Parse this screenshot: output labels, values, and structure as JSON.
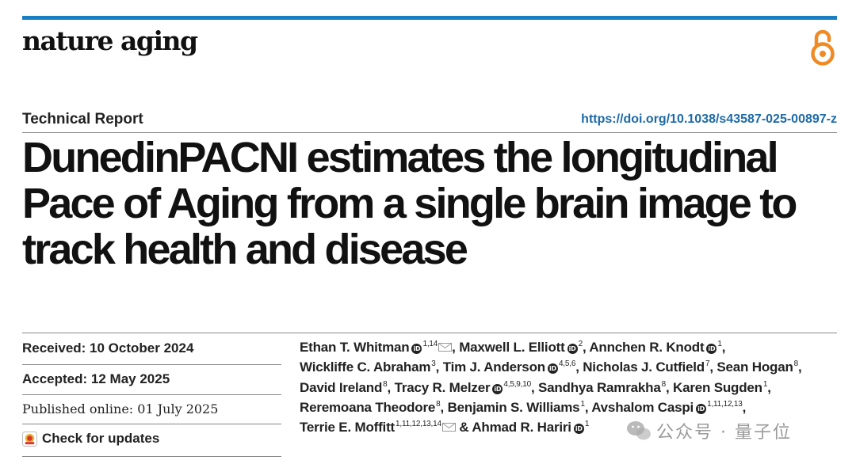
{
  "journal": {
    "name": "nature aging",
    "open_access_icon": "open-access-lock-icon"
  },
  "article": {
    "type": "Technical Report",
    "doi": "https://doi.org/10.1038/s43587-025-00897-z",
    "title_lines": [
      "DunedinPACNI estimates the longitudinal",
      "Pace of Aging from a single brain image to",
      "track health and disease"
    ]
  },
  "dates": {
    "received": "Received: 10 October 2024",
    "accepted": "Accepted: 12 May 2025",
    "published": "Published online: 01 July 2025"
  },
  "check_updates": {
    "label": "Check for updates"
  },
  "orcid_glyph": "iD",
  "authors": [
    {
      "name": "Ethan T. Whitman",
      "sup": "1,14",
      "orcid": true,
      "email": true
    },
    {
      "name": "Maxwell L. Elliott",
      "sup": "2",
      "orcid": true
    },
    {
      "name": "Annchen R. Knodt",
      "sup": "1",
      "orcid": true
    },
    {
      "name": "Wickliffe C. Abraham",
      "sup": "3"
    },
    {
      "name": "Tim J. Anderson",
      "sup": "4,5,6",
      "orcid": true
    },
    {
      "name": "Nicholas J. Cutfield",
      "sup": "7"
    },
    {
      "name": "Sean Hogan",
      "sup": "8"
    },
    {
      "name": "David Ireland",
      "sup": "8"
    },
    {
      "name": "Tracy R. Melzer",
      "sup": "4,5,9,10",
      "orcid": true
    },
    {
      "name": "Sandhya Ramrakha",
      "sup": "8"
    },
    {
      "name": "Karen Sugden",
      "sup": "1"
    },
    {
      "name": "Reremoana Theodore",
      "sup": "8"
    },
    {
      "name": "Benjamin S. Williams",
      "sup": "1"
    },
    {
      "name": "Avshalom Caspi",
      "sup": "1,11,12,13",
      "orcid": true
    },
    {
      "name": "Terrie E. Moffitt",
      "sup": "1,11,12,13,14",
      "email": true
    },
    {
      "name": "Ahmad R. Hariri",
      "sup": "1",
      "orcid": true,
      "prefix": "& "
    }
  ],
  "watermark": {
    "text": "公众号 · 量子位",
    "icon": "wechat-logo-icon"
  },
  "colors": {
    "accent_bar": "#1c7ec2",
    "doi_link": "#1d6aa8",
    "open_access": "#f08a24"
  }
}
